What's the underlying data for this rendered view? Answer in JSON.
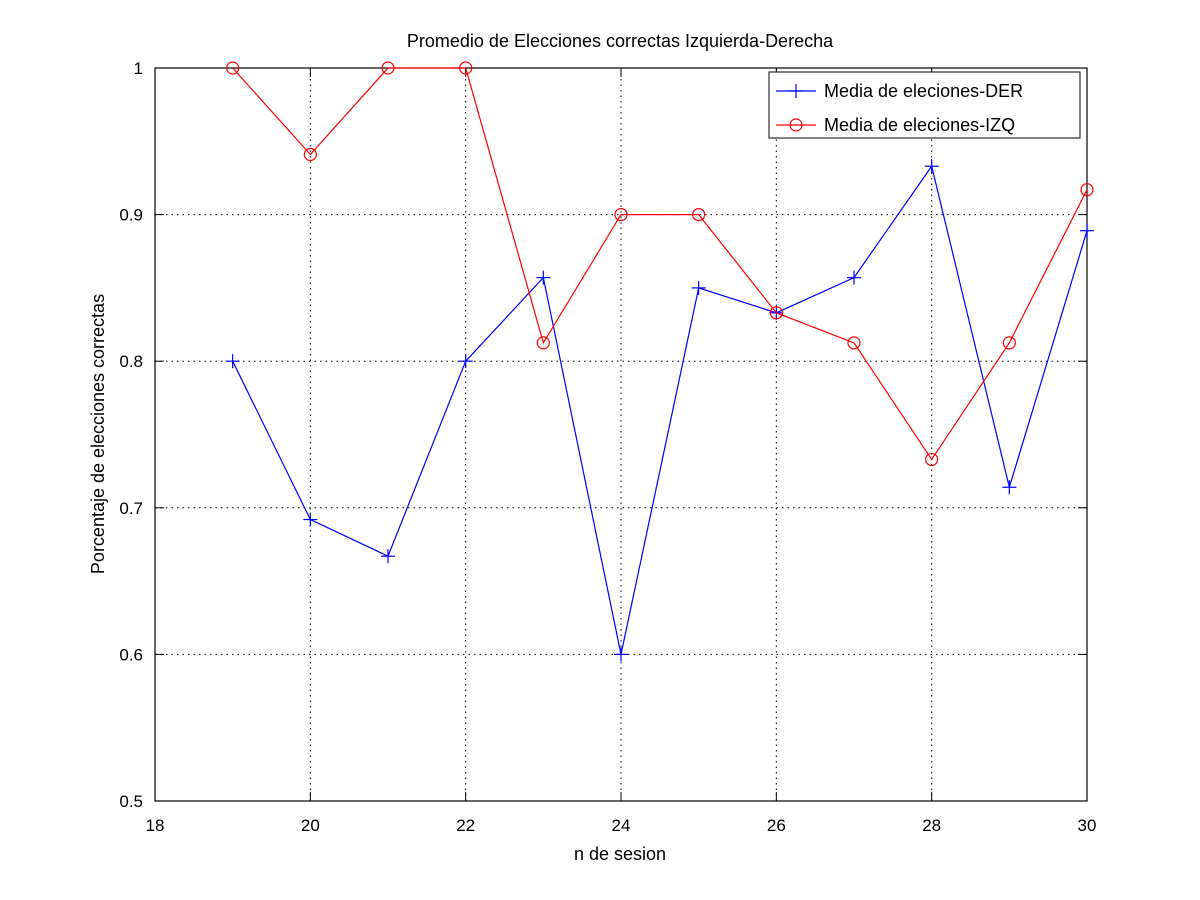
{
  "chart_data": {
    "type": "line",
    "title": "Promedio de Elecciones correctas Izquierda-Derecha",
    "xlabel": "n de sesion",
    "ylabel": "Porcentaje de elecciones correctas",
    "xlim": [
      18,
      30
    ],
    "ylim": [
      0.5,
      1
    ],
    "xticks": [
      18,
      20,
      22,
      24,
      26,
      28,
      30
    ],
    "yticks": [
      0.5,
      0.6,
      0.7,
      0.8,
      0.9,
      1
    ],
    "xtick_labels": [
      "18",
      "20",
      "22",
      "24",
      "26",
      "28",
      "30"
    ],
    "ytick_labels": [
      "0.5",
      "0.6",
      "0.7",
      "0.8",
      "0.9",
      "1"
    ],
    "grid": true,
    "legend_position": "top-right",
    "series": [
      {
        "name": "Media de eleciones-DER",
        "color": "#0000ff",
        "marker": "plus",
        "x": [
          19,
          20,
          21,
          22,
          23,
          24,
          25,
          26,
          27,
          28,
          29,
          30
        ],
        "y": [
          0.8,
          0.692,
          0.667,
          0.8,
          0.857,
          0.6,
          0.85,
          0.833,
          0.857,
          0.933,
          0.714,
          0.889
        ]
      },
      {
        "name": "Media de eleciones-IZQ",
        "color": "#ff0000",
        "marker": "circle",
        "x": [
          19,
          20,
          21,
          22,
          23,
          24,
          25,
          26,
          27,
          28,
          29,
          30
        ],
        "y": [
          1.0,
          0.941,
          1.0,
          1.0,
          0.8125,
          0.9,
          0.9,
          0.833,
          0.8125,
          0.733,
          0.8125,
          0.917
        ]
      }
    ]
  }
}
